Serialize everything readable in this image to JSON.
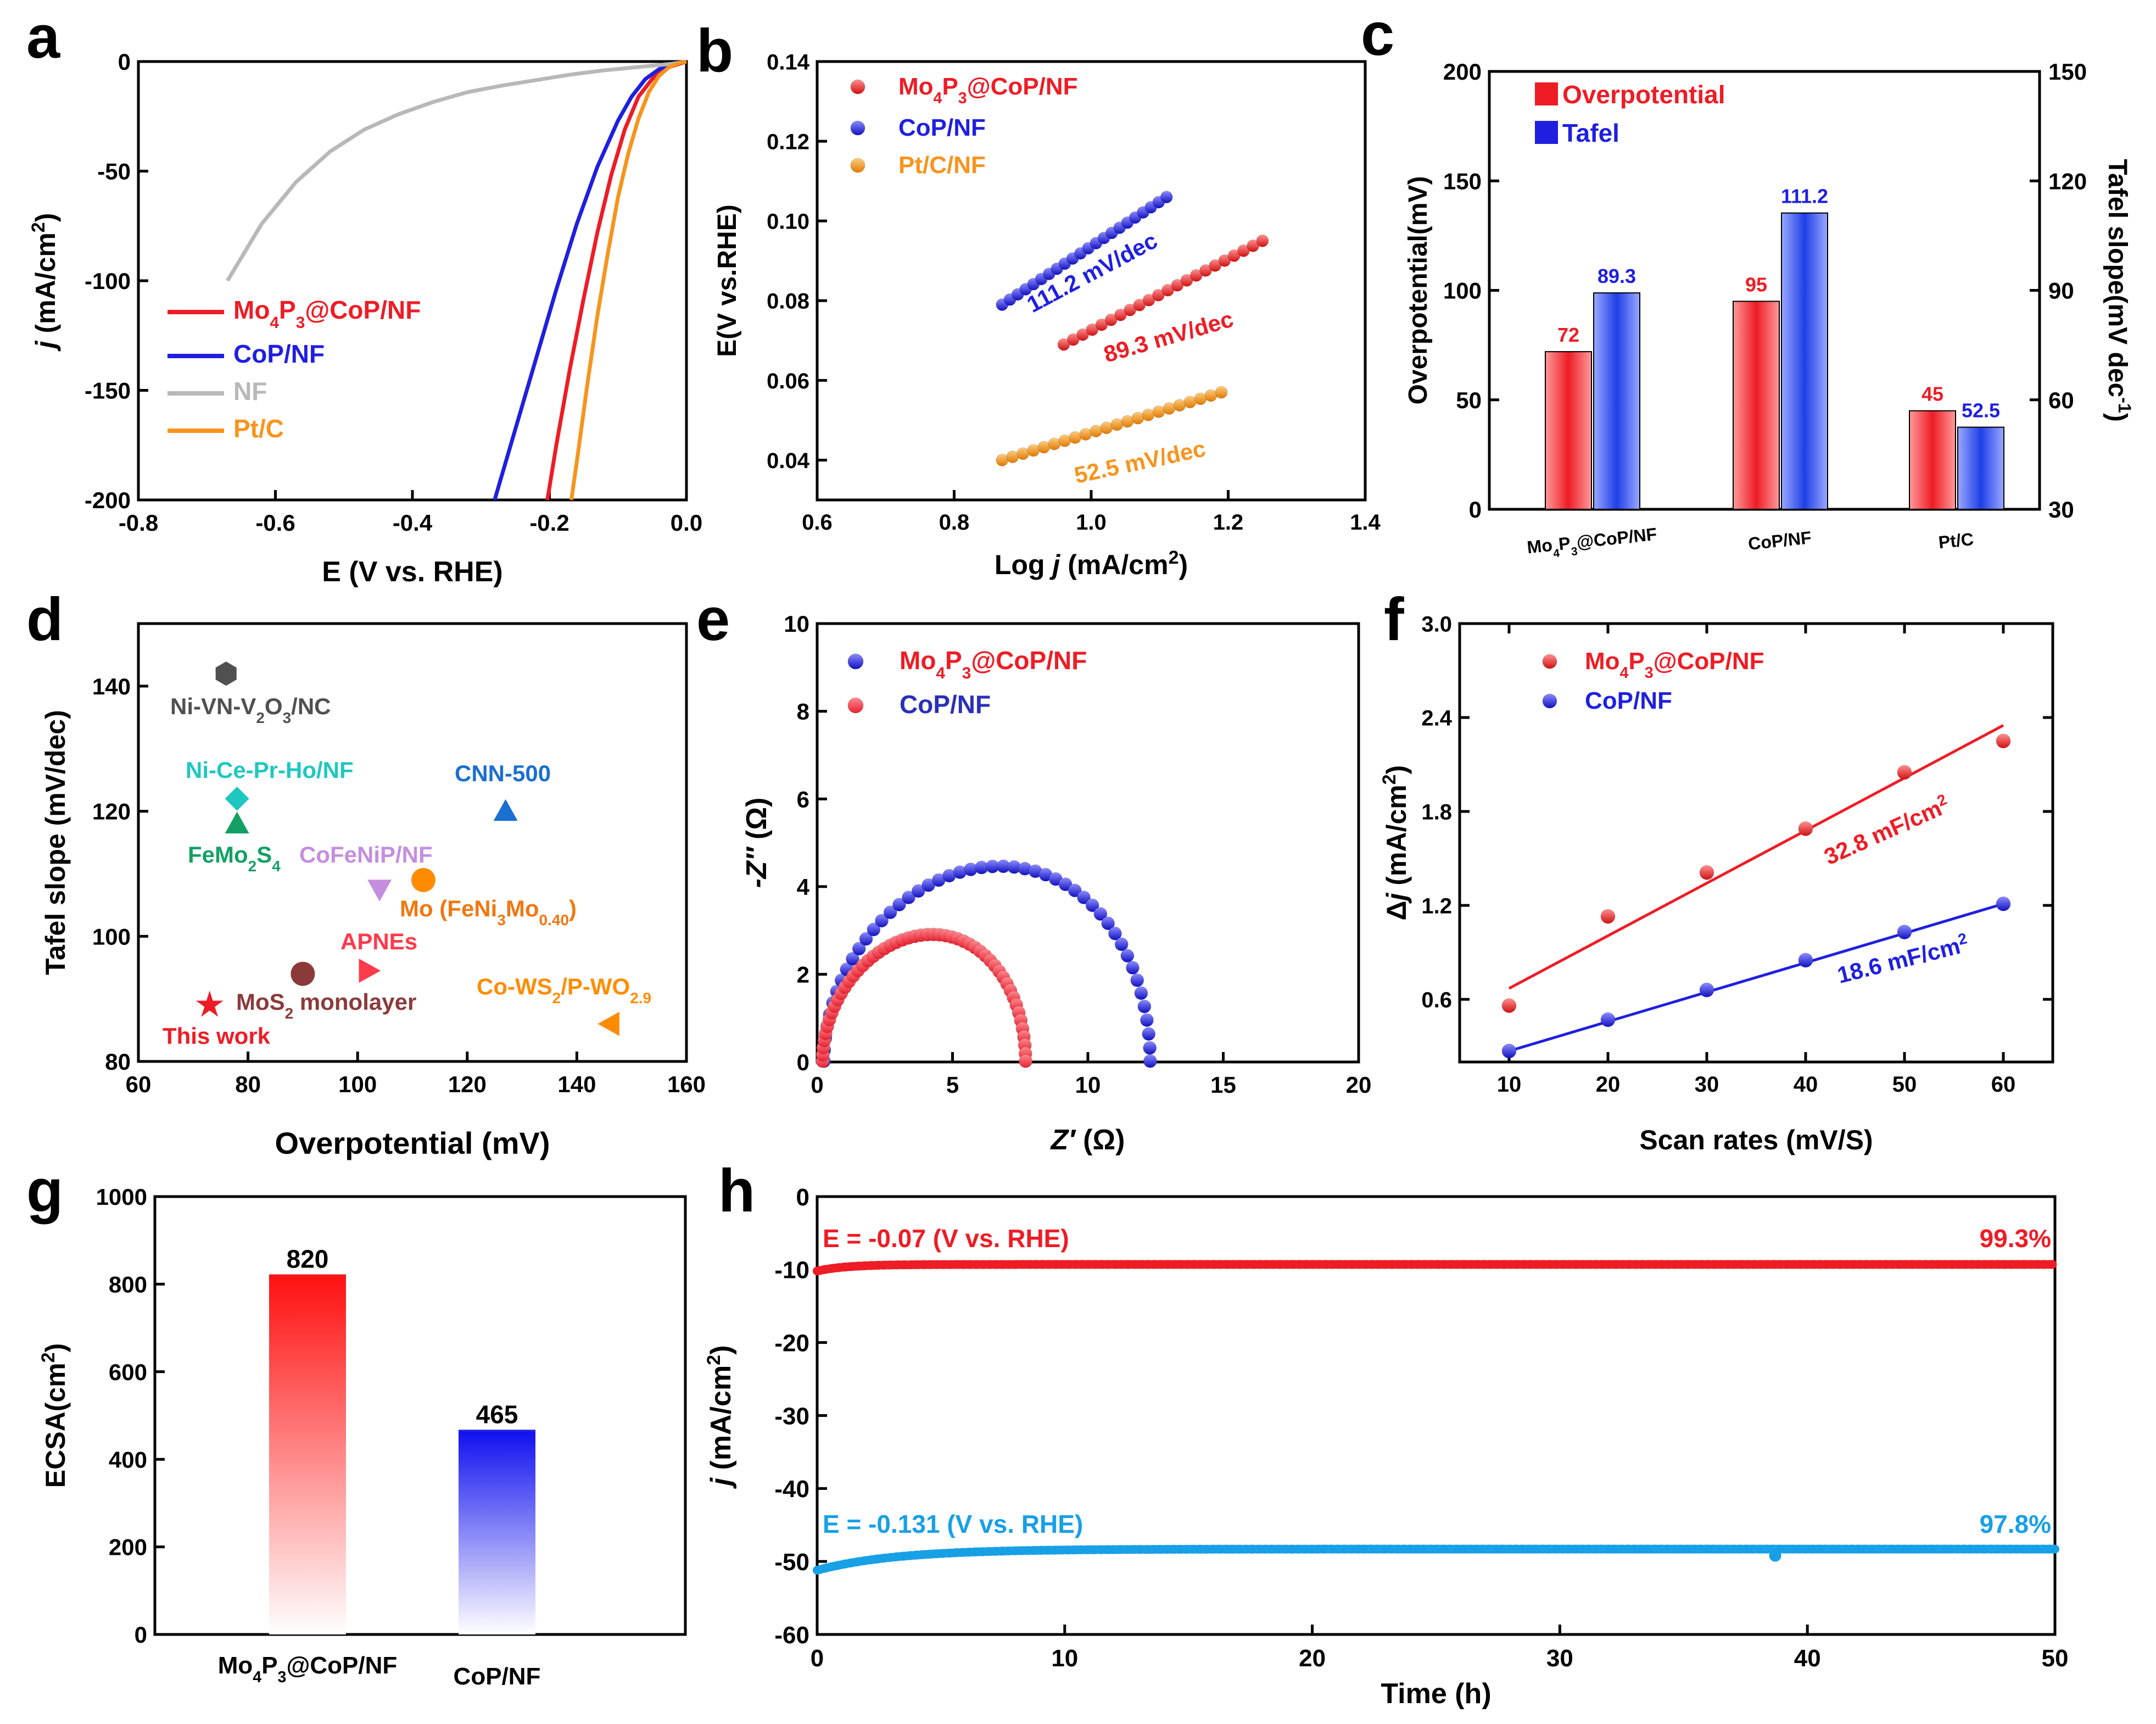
{
  "colors": {
    "red": "#ee1c25",
    "blue": "#1f1fe0",
    "grey": "#b8b8b8",
    "orange": "#f7941d",
    "navy": "#2a30b8",
    "cyan": "#18a0e6",
    "teal": "#1ec8c0",
    "green": "#14a064",
    "purple": "#c48ee0",
    "brown": "#8b3a3a",
    "darkgrey": "#505050",
    "ocean": "#1a6fd0",
    "coral": "#ff3a4a",
    "amber": "#ff8c00",
    "orangetext": "#f07810"
  },
  "panel_labels": [
    "a",
    "b",
    "c",
    "d",
    "e",
    "f",
    "g",
    "h"
  ],
  "chart_data": [
    {
      "id": "a",
      "type": "line",
      "xlabel": "E (V vs. RHE)",
      "ylabel": "j (mA/cm²)",
      "xlim": [
        -0.8,
        0.0
      ],
      "ylim": [
        -200,
        0
      ],
      "xticks": [
        "-0.8",
        "-0.6",
        "-0.4",
        "-0.2",
        "0.0"
      ],
      "yticks": [
        "0",
        "-50",
        "-100",
        "-150",
        "-200"
      ],
      "series": [
        {
          "name": "Mo4P3@CoP/NF",
          "legend": {
            "base": "Mo",
            "sub1": "4",
            "mid": "P",
            "sub2": "3",
            "rest": "@CoP/NF"
          },
          "color": "red",
          "x": [
            -0.203,
            -0.19,
            -0.17,
            -0.15,
            -0.13,
            -0.11,
            -0.09,
            -0.07,
            -0.05,
            -0.03,
            -0.01,
            0.0
          ],
          "y": [
            -200,
            -175,
            -140,
            -108,
            -78,
            -52,
            -31,
            -16,
            -8,
            -3,
            -1,
            0
          ]
        },
        {
          "name": "CoP/NF",
          "legend": {
            "base": "CoP/NF"
          },
          "color": "blue",
          "x": [
            -0.28,
            -0.25,
            -0.22,
            -0.19,
            -0.16,
            -0.13,
            -0.1,
            -0.08,
            -0.06,
            -0.04,
            -0.02,
            0.0
          ],
          "y": [
            -200,
            -168,
            -136,
            -104,
            -74,
            -48,
            -27,
            -16,
            -8,
            -3.5,
            -1,
            0
          ]
        },
        {
          "name": "NF",
          "legend": {
            "base": "NF"
          },
          "color": "grey",
          "x": [
            -0.67,
            -0.62,
            -0.57,
            -0.52,
            -0.47,
            -0.42,
            -0.37,
            -0.32,
            -0.27,
            -0.22,
            -0.17,
            -0.12,
            -0.07,
            -0.02,
            0.0
          ],
          "y": [
            -100,
            -74,
            -55,
            -41,
            -31,
            -24,
            -18.5,
            -14,
            -11,
            -8.5,
            -6,
            -4,
            -2.5,
            -1,
            0
          ]
        },
        {
          "name": "Pt/C",
          "legend": {
            "base": "Pt/C"
          },
          "color": "orange",
          "x": [
            -0.168,
            -0.158,
            -0.145,
            -0.13,
            -0.115,
            -0.1,
            -0.085,
            -0.07,
            -0.055,
            -0.04,
            -0.025,
            -0.01,
            0.0
          ],
          "y": [
            -200,
            -178,
            -148,
            -116,
            -88,
            -62,
            -42,
            -26,
            -14,
            -6.5,
            -2.5,
            -0.6,
            0
          ]
        }
      ]
    },
    {
      "id": "b",
      "type": "scatter",
      "xlabel": "Log j (mA/cm²)",
      "ylabel": "E(V vs.RHE)",
      "xlim": [
        0.6,
        1.4
      ],
      "ylim": [
        0.03,
        0.14
      ],
      "xticks": [
        "0.6",
        "0.8",
        "1.0",
        "1.2",
        "1.4"
      ],
      "yticks": [
        "0.04",
        "0.06",
        "0.08",
        "0.10",
        "0.12",
        "0.14"
      ],
      "series": [
        {
          "name": "Mo4P3@CoP/NF",
          "legend": {
            "base": "Mo",
            "sub1": "4",
            "mid": "P",
            "sub2": "3",
            "rest": "@CoP/NF"
          },
          "color": "red",
          "x_range": [
            0.96,
            1.25
          ],
          "y_range": [
            0.069,
            0.095
          ],
          "n": 22,
          "annotation": "89.3 mV/dec"
        },
        {
          "name": "CoP/NF",
          "legend": {
            "base": "CoP/NF"
          },
          "color": "blue",
          "x_range": [
            0.87,
            1.11
          ],
          "y_range": [
            0.079,
            0.106
          ],
          "n": 22,
          "annotation": "111.2 mV/dec"
        },
        {
          "name": "Pt/C/NF",
          "legend": {
            "base": "Pt/C/NF"
          },
          "color": "orange",
          "x_range": [
            0.87,
            1.19
          ],
          "y_range": [
            0.04,
            0.057
          ],
          "n": 22,
          "annotation": "52.5 mV/dec"
        }
      ]
    },
    {
      "id": "c",
      "type": "bar",
      "categories": [
        "Mo4P3@CoP/NF",
        "CoP/NF",
        "Pt/C"
      ],
      "category_labels": [
        {
          "base": "Mo",
          "sub1": "4",
          "mid": "P",
          "sub2": "3",
          "rest": "@CoP/NF"
        },
        {
          "base": "CoP/NF"
        },
        {
          "base": "Pt/C"
        }
      ],
      "ylabel": "Overpotential(mV)",
      "ylim": [
        0,
        200
      ],
      "yticks": [
        "0",
        "50",
        "100",
        "150",
        "200"
      ],
      "y2label": "Tafel slope(mV dec⁻¹)",
      "y2lim": [
        30,
        150
      ],
      "y2ticks": [
        "30",
        "60",
        "90",
        "120",
        "150"
      ],
      "series": [
        {
          "name": "Overpotential",
          "axis": "left",
          "color": "red",
          "values": [
            72,
            95,
            45
          ],
          "labels": [
            "72",
            "95",
            "45"
          ]
        },
        {
          "name": "Tafel",
          "axis": "right",
          "color": "blue",
          "values": [
            89.3,
            111.2,
            52.5
          ],
          "labels": [
            "89.3",
            "111.2",
            "52.5"
          ]
        }
      ]
    },
    {
      "id": "d",
      "type": "scatter",
      "xlabel": "Overpotential (mV)",
      "ylabel": "Tafel slope (mV/dec)",
      "xlim": [
        60,
        160
      ],
      "ylim": [
        80,
        150
      ],
      "xticks": [
        "60",
        "80",
        "100",
        "120",
        "140",
        "160"
      ],
      "yticks": [
        "80",
        "100",
        "120",
        "140"
      ],
      "points": [
        {
          "name": "Ni-VN-V2O3/NC",
          "parts": [
            "Ni-VN-V",
            "2",
            "O",
            "3",
            "/NC"
          ],
          "x": 76,
          "y": 142,
          "marker": "hexagon",
          "color": "darkgrey"
        },
        {
          "name": "Ni-Ce-Pr-Ho/NF",
          "parts": [
            "Ni-Ce-Pr-Ho/NF"
          ],
          "x": 78,
          "y": 122,
          "marker": "diamond",
          "color": "teal"
        },
        {
          "name": "FeMo2S4",
          "parts": [
            "FeMo",
            "2",
            "S",
            "4"
          ],
          "x": 78,
          "y": 118,
          "marker": "triangle-up",
          "color": "green"
        },
        {
          "name": "CoFeNiP/NF",
          "parts": [
            "CoFeNiP/NF"
          ],
          "x": 104,
          "y": 107.5,
          "marker": "triangle-down",
          "color": "purple"
        },
        {
          "name": "Mo (FeNi3Mo0.40)",
          "parts": [
            "Mo (FeNi",
            "3",
            "Mo",
            "0.40",
            ")"
          ],
          "x": 112,
          "y": 109,
          "marker": "circle",
          "color": "amber"
        },
        {
          "name": "CNN-500",
          "parts": [
            "CNN-500"
          ],
          "x": 127,
          "y": 120,
          "marker": "triangle-up",
          "color": "ocean"
        },
        {
          "name": "APNEs",
          "parts": [
            "APNEs"
          ],
          "x": 102,
          "y": 94.5,
          "marker": "triangle-right",
          "color": "coral"
        },
        {
          "name": "MoS2 monolayer",
          "parts": [
            "MoS",
            "2",
            " monolayer"
          ],
          "x": 90,
          "y": 94,
          "marker": "circle",
          "color": "brown"
        },
        {
          "name": "Co-WS2/P-WO2.9",
          "parts": [
            "Co-WS",
            "2",
            "/P-WO",
            "2.9"
          ],
          "x": 146,
          "y": 86,
          "marker": "triangle-left",
          "color": "amber"
        },
        {
          "name": "This work",
          "parts": [
            "This work"
          ],
          "x": 73,
          "y": 89,
          "marker": "star",
          "color": "red"
        }
      ]
    },
    {
      "id": "e",
      "type": "scatter",
      "xlabel": "Z′ (Ω)",
      "ylabel": "-Z″ (Ω)",
      "xlim": [
        0,
        20
      ],
      "ylim": [
        0,
        10
      ],
      "xticks": [
        "0",
        "5",
        "10",
        "15",
        "20"
      ],
      "yticks": [
        "0",
        "2",
        "4",
        "6",
        "8",
        "10"
      ],
      "series": [
        {
          "name": "Mo4P3@CoP/NF",
          "legend": {
            "base": "Mo",
            "sub1": "4",
            "mid": "P",
            "sub2": "3",
            "rest": "@CoP/NF"
          },
          "color": "blue",
          "semicircle": {
            "x_start": 0.25,
            "x_end": 12.3,
            "peak_x": 6.5,
            "peak": 4.45
          },
          "n": 48
        },
        {
          "name": "CoP/NF",
          "legend": {
            "base": "CoP/NF"
          },
          "color": "coral",
          "semicircle": {
            "x_start": 0.2,
            "x_end": 7.7,
            "peak_x": 4.3,
            "peak": 2.9
          },
          "n": 52
        }
      ]
    },
    {
      "id": "f",
      "type": "scatter",
      "xlabel": "Scan rates (mV/S)",
      "ylabel": "Δj (mA/cm²)",
      "xlim": [
        5,
        65
      ],
      "ylim": [
        0.2,
        3.0
      ],
      "xticks": [
        "10",
        "20",
        "30",
        "40",
        "50",
        "60"
      ],
      "yticks": [
        "0.6",
        "1.2",
        "1.8",
        "2.4",
        "3.0"
      ],
      "series": [
        {
          "name": "Mo4P3@CoP/NF",
          "legend": {
            "base": "Mo",
            "sub1": "4",
            "mid": "P",
            "sub2": "3",
            "rest": "@CoP/NF"
          },
          "color": "red",
          "x": [
            10,
            20,
            30,
            40,
            50,
            60
          ],
          "y": [
            0.56,
            1.13,
            1.41,
            1.69,
            2.05,
            2.25
          ],
          "fit": [
            [
              10,
              0.67
            ],
            [
              60,
              2.35
            ]
          ],
          "annotation": "32.8 mF/cm²"
        },
        {
          "name": "CoP/NF",
          "legend": {
            "base": "CoP/NF"
          },
          "color": "blue",
          "x": [
            10,
            20,
            30,
            40,
            50,
            60
          ],
          "y": [
            0.27,
            0.47,
            0.66,
            0.85,
            1.03,
            1.21
          ],
          "fit": [
            [
              10,
              0.27
            ],
            [
              60,
              1.21
            ]
          ],
          "annotation": "18.6 mF/cm²"
        }
      ]
    },
    {
      "id": "g",
      "type": "bar",
      "ylabel": "ECSA(cm²)",
      "ylim": [
        0,
        1000
      ],
      "yticks": [
        "0",
        "200",
        "400",
        "600",
        "800",
        "1000"
      ],
      "categories": [
        "Mo4P3@CoP/NF",
        "CoP/NF"
      ],
      "category_labels": [
        {
          "base": "Mo",
          "sub1": "4",
          "mid": "P",
          "sub2": "3",
          "rest": "@CoP/NF"
        },
        {
          "base": "CoP/NF"
        }
      ],
      "values": [
        820,
        465
      ],
      "labels": [
        "820",
        "465"
      ],
      "colors": [
        "red",
        "blue"
      ]
    },
    {
      "id": "h",
      "type": "line",
      "xlabel": "Time (h)",
      "ylabel": "j (mA/cm²)",
      "xlim": [
        0,
        50
      ],
      "ylim": [
        -60,
        0
      ],
      "xticks": [
        "0",
        "10",
        "20",
        "30",
        "40",
        "50"
      ],
      "yticks": [
        "0",
        "-10",
        "-20",
        "-30",
        "-40",
        "-50",
        "-60"
      ],
      "series": [
        {
          "name": "E = -0.07 (V vs. RHE)",
          "color": "red",
          "start": -10.2,
          "steady": -9.3,
          "retention": "99.3%"
        },
        {
          "name": "E = -0.131 (V vs. RHE)",
          "color": "cyan",
          "start": -51.2,
          "steady": -48.3,
          "retention": "97.8%"
        }
      ]
    }
  ]
}
